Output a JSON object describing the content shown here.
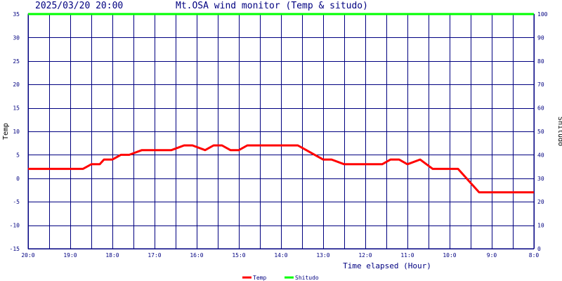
{
  "header": {
    "datetime": "2025/03/20 20:00",
    "title": "Mt.OSA wind monitor (Temp & situdo)"
  },
  "colors": {
    "grid": "#000080",
    "temp": "#ff0000",
    "shitudo": "#00ff00",
    "axis_text": "#000080",
    "label_text": "#000000"
  },
  "chart_data": {
    "type": "line",
    "title": "Mt.OSA wind monitor (Temp & situdo)",
    "xlabel": "Time elapsed (Hour)",
    "ylabel": "Temp",
    "y2label": "Shitudo",
    "grid": true,
    "legend_position": "bottom-center",
    "xlim": [
      20,
      8
    ],
    "ylim": [
      -15,
      35
    ],
    "y2lim": [
      0,
      100
    ],
    "x_ticks": [
      "20:0",
      "19:0",
      "18:0",
      "17:0",
      "16:0",
      "15:0",
      "14:0",
      "13:0",
      "12:0",
      "11:0",
      "10:0",
      "9:0",
      "8:0"
    ],
    "x_tick_values": [
      20,
      19,
      18,
      17,
      16,
      15,
      14,
      13,
      12,
      11,
      10,
      9,
      8
    ],
    "y_ticks": [
      35,
      30,
      25,
      20,
      15,
      10,
      5,
      0,
      -5,
      -10,
      -15
    ],
    "y2_ticks": [
      100,
      90,
      80,
      70,
      60,
      50,
      40,
      30,
      20,
      10,
      0
    ],
    "series": [
      {
        "name": "Temp",
        "axis": "left",
        "x": [
          20,
          18.7,
          18.5,
          18.3,
          18.2,
          18.0,
          17.8,
          17.6,
          17.3,
          16.6,
          16.3,
          16.1,
          15.8,
          15.6,
          15.4,
          15.2,
          15.0,
          14.8,
          13.6,
          13.4,
          13.2,
          13.0,
          12.8,
          12.5,
          11.6,
          11.4,
          11.2,
          11.0,
          10.7,
          10.4,
          9.8,
          9.6,
          9.3,
          8.0
        ],
        "values": [
          2,
          2,
          3,
          3,
          4,
          4,
          5,
          5,
          6,
          6,
          7,
          7,
          6,
          7,
          7,
          6,
          6,
          7,
          7,
          6,
          5,
          4,
          4,
          3,
          3,
          4,
          4,
          3,
          4,
          2,
          2,
          0,
          -3,
          -3
        ]
      },
      {
        "name": "Shitudo",
        "axis": "right",
        "x": [
          20,
          8
        ],
        "values": [
          100,
          100
        ]
      }
    ]
  }
}
